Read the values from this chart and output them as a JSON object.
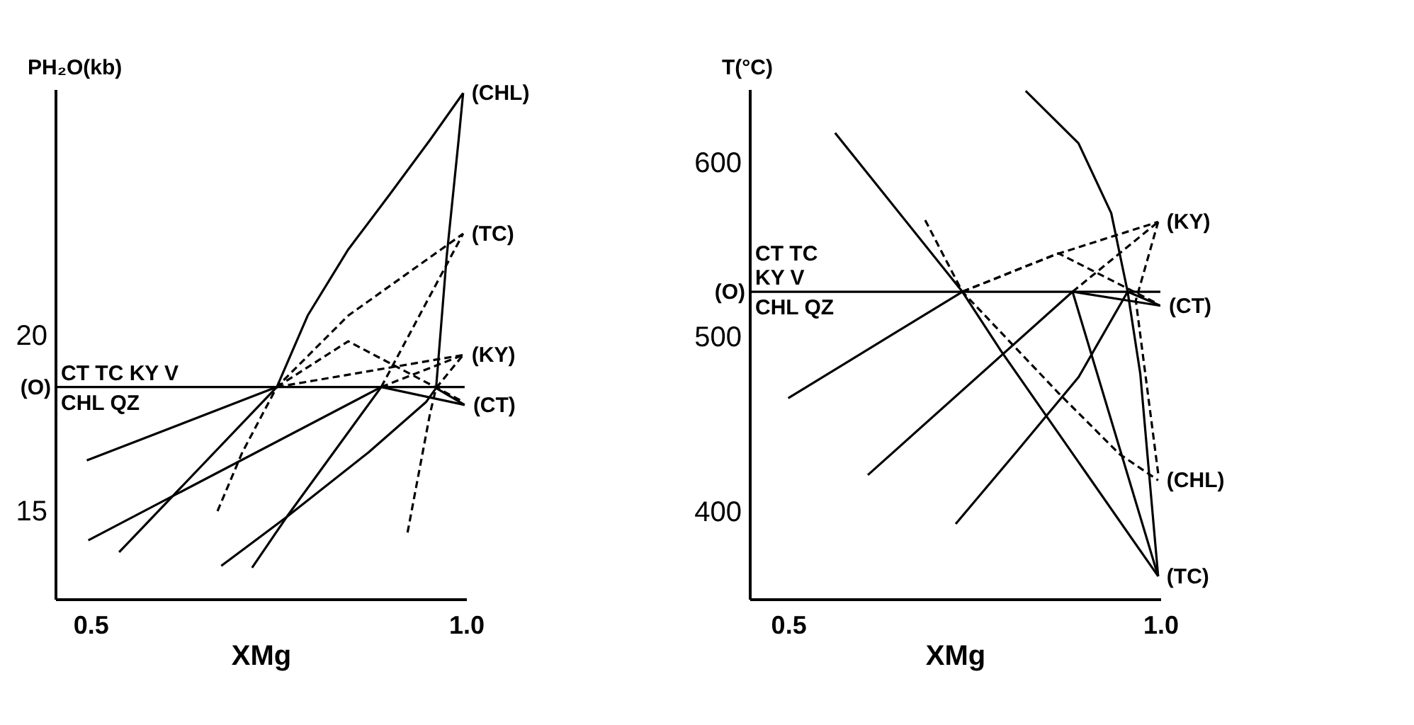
{
  "chart_data": [
    {
      "type": "line",
      "xlabel": "XMg",
      "ylabel": "PH₂O(kb)",
      "xlim": [
        0.453,
        1.0
      ],
      "ylim": [
        12.5,
        27
      ],
      "xticks": [
        0.5,
        {
          "value": 1.0,
          "label": "1.0"
        }
      ],
      "yticks": [
        15,
        20
      ],
      "grid": false,
      "marker": "none",
      "series": [
        {
          "color": "#000000",
          "line_style": "solid",
          "x": [
            0.454,
            0.998
          ],
          "values": [
            18.53,
            18.53
          ]
        },
        {
          "color": "#000000",
          "line_style": "solid",
          "x": [
            0.495,
            0.748
          ],
          "values": [
            16.44,
            18.53
          ]
        },
        {
          "color": "#000000",
          "line_style": "solid",
          "x": [
            0.538,
            0.748,
            0.789,
            0.843,
            0.898,
            0.952,
            0.996
          ],
          "values": [
            13.83,
            18.53,
            20.56,
            22.44,
            24.0,
            25.56,
            26.89
          ]
        },
        {
          "color": "#000000",
          "line_style": "solid",
          "x": [
            0.497,
            0.887,
            0.998
          ],
          "values": [
            14.17,
            18.53,
            18.02
          ]
        },
        {
          "color": "#000000",
          "line_style": "solid",
          "x": [
            0.715,
            0.761,
            0.887
          ],
          "values": [
            13.39,
            14.83,
            18.53
          ]
        },
        {
          "color": "#000000",
          "line_style": "solid",
          "x": [
            0.674,
            0.761,
            0.87,
            0.947,
            0.96,
            0.974,
            0.99,
            0.996
          ],
          "values": [
            13.44,
            14.83,
            16.67,
            18.11,
            18.5,
            22.22,
            25.56,
            26.89
          ]
        },
        {
          "color": "#000000",
          "line_style": "solid",
          "x": [
            0.96,
            0.998
          ],
          "values": [
            18.5,
            18.02
          ]
        },
        {
          "color": "#000000",
          "line_style": "dashed",
          "x": [
            0.669,
            0.702,
            0.748,
            0.843,
            0.996
          ],
          "values": [
            15.0,
            16.67,
            18.53,
            20.56,
            22.89
          ]
        },
        {
          "color": "#000000",
          "line_style": "dashed",
          "x": [
            0.748,
            0.843,
            0.996
          ],
          "values": [
            18.53,
            19.83,
            18.11
          ]
        },
        {
          "color": "#000000",
          "line_style": "dashed",
          "x": [
            0.748,
            0.996
          ],
          "values": [
            18.53,
            19.44
          ]
        },
        {
          "color": "#000000",
          "line_style": "dashed",
          "x": [
            0.887,
            0.996
          ],
          "values": [
            18.53,
            22.89
          ]
        },
        {
          "color": "#000000",
          "line_style": "dashed",
          "x": [
            0.887,
            0.996
          ],
          "values": [
            18.53,
            19.44
          ]
        },
        {
          "color": "#000000",
          "line_style": "dashed",
          "x": [
            0.922,
            0.952,
            0.96,
            0.996
          ],
          "values": [
            14.39,
            17.78,
            18.5,
            19.44
          ]
        }
      ],
      "annotations": [
        {
          "text": "(O)",
          "x": 0.453,
          "y": 18.53
        },
        "CT TC KY V",
        "CHL QZ",
        {
          "text": "(CHL)",
          "x": 0.996,
          "y": 26.89
        },
        {
          "text": "(TC)",
          "x": 0.996,
          "y": 22.89
        },
        {
          "text": "(KY)",
          "x": 0.996,
          "y": 19.44
        },
        {
          "text": "(CT)",
          "x": 0.998,
          "y": 18.02
        }
      ]
    },
    {
      "type": "line",
      "xlabel": "XMg",
      "ylabel": "T(°C)",
      "xlim": [
        0.448,
        1.0
      ],
      "ylim": [
        350,
        642
      ],
      "xticks": [
        0.5,
        {
          "value": 1.0,
          "label": "1.0"
        }
      ],
      "yticks": [
        400,
        500,
        600
      ],
      "grid": false,
      "marker": "none",
      "series": [
        {
          "color": "#000000",
          "line_style": "solid",
          "x": [
            0.448,
            1.0
          ],
          "values": [
            526,
            526
          ]
        },
        {
          "color": "#000000",
          "line_style": "solid",
          "x": [
            0.5,
            0.734
          ],
          "values": [
            465,
            526
          ]
        },
        {
          "color": "#000000",
          "line_style": "solid",
          "x": [
            0.563,
            0.734,
            0.786,
            0.997
          ],
          "values": [
            617,
            526,
            492,
            363
          ]
        },
        {
          "color": "#000000",
          "line_style": "solid",
          "x": [
            0.607,
            0.882,
            1.0
          ],
          "values": [
            421,
            526,
            518
          ]
        },
        {
          "color": "#000000",
          "line_style": "solid",
          "x": [
            0.725,
            0.808,
            0.89,
            0.956
          ],
          "values": [
            393,
            435,
            477,
            526
          ]
        },
        {
          "color": "#000000",
          "line_style": "solid",
          "x": [
            0.819,
            0.89,
            0.934,
            0.956,
            0.973,
            0.997
          ],
          "values": [
            641,
            611,
            571,
            526,
            479,
            363
          ]
        },
        {
          "color": "#000000",
          "line_style": "solid",
          "x": [
            0.882,
            0.997
          ],
          "values": [
            526,
            363
          ]
        },
        {
          "color": "#000000",
          "line_style": "solid",
          "x": [
            0.956,
            1.0
          ],
          "values": [
            526,
            518
          ]
        },
        {
          "color": "#000000",
          "line_style": "dashed",
          "x": [
            0.684,
            0.734,
            0.863,
            0.945,
            0.997
          ],
          "values": [
            567,
            526,
            468,
            433,
            418
          ]
        },
        {
          "color": "#000000",
          "line_style": "dashed",
          "x": [
            0.734,
            0.857,
            0.997
          ],
          "values": [
            526,
            547,
            566
          ]
        },
        {
          "color": "#000000",
          "line_style": "dashed",
          "x": [
            0.734,
            0.863,
            0.997
          ],
          "values": [
            526,
            548,
            519
          ]
        },
        {
          "color": "#000000",
          "line_style": "dashed",
          "x": [
            0.882,
            0.997
          ],
          "values": [
            526,
            566
          ]
        },
        {
          "color": "#000000",
          "line_style": "dashed",
          "x": [
            0.997,
            0.967,
            0.997
          ],
          "values": [
            422,
            521,
            566
          ]
        }
      ],
      "annotations": [
        {
          "text": "(O)",
          "x": 0.448,
          "y": 526
        },
        "CT TC",
        "KY V",
        "CHL QZ",
        {
          "text": "(KY)",
          "x": 0.997,
          "y": 566
        },
        {
          "text": "(CT)",
          "x": 1.0,
          "y": 518
        },
        {
          "text": "(CHL)",
          "x": 0.997,
          "y": 418
        },
        {
          "text": "(TC)",
          "x": 0.997,
          "y": 363
        }
      ]
    }
  ]
}
